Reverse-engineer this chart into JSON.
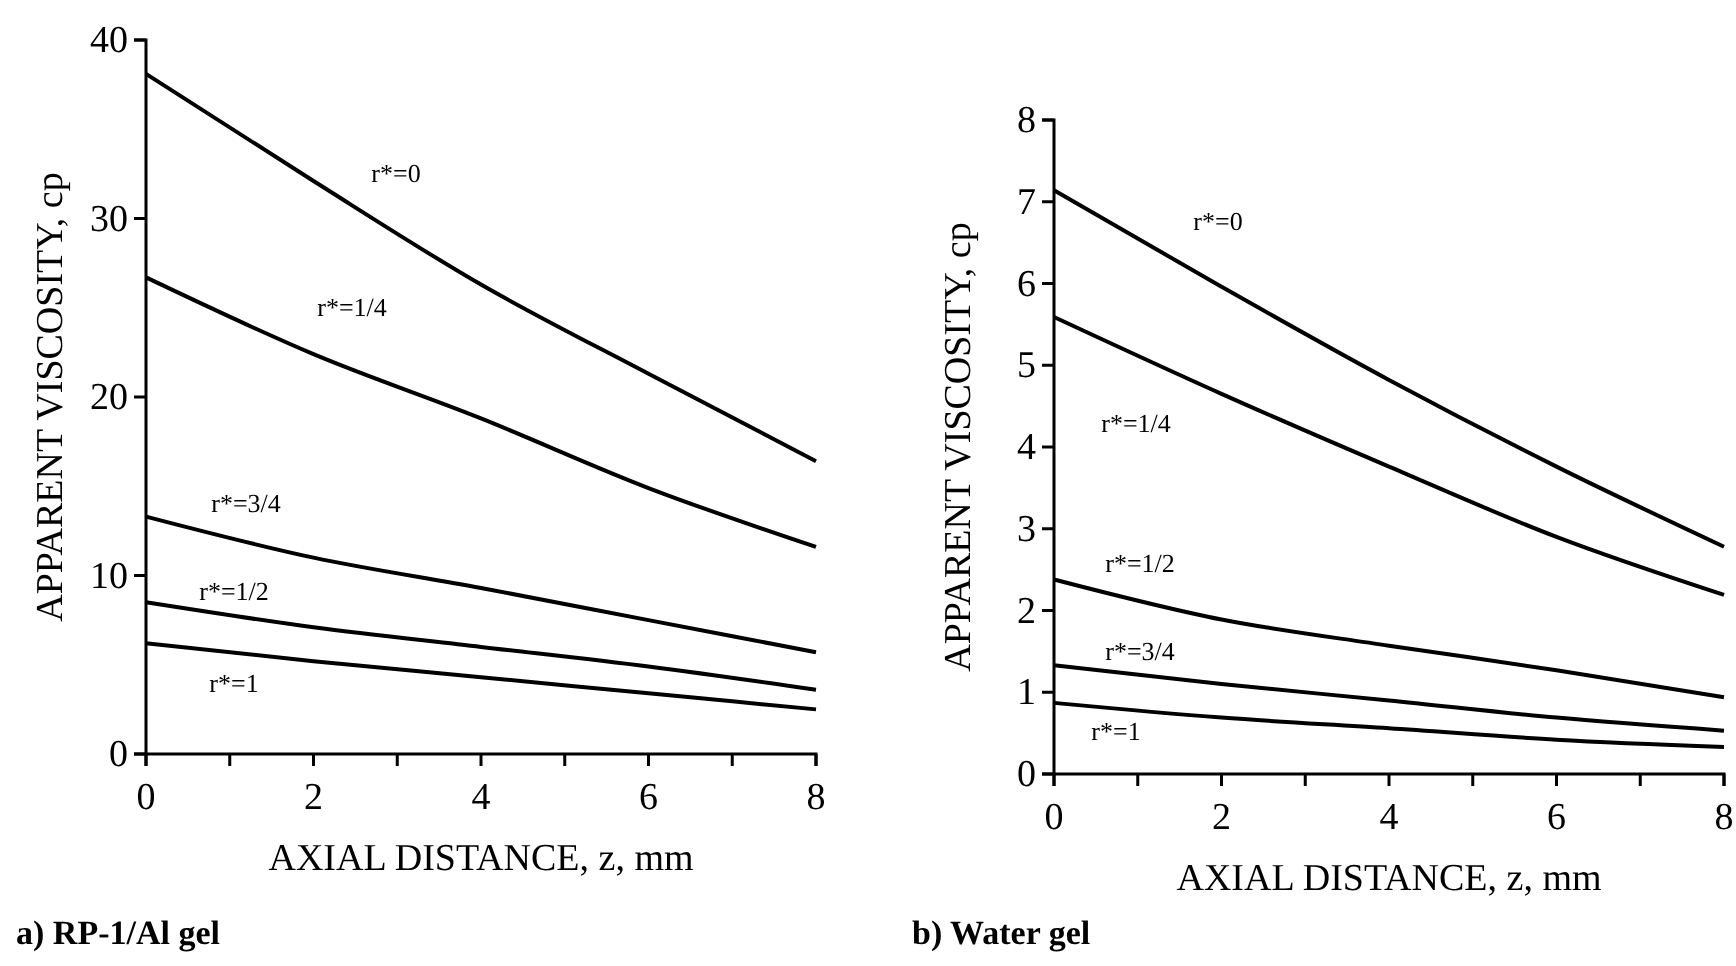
{
  "chart_data": [
    {
      "type": "line",
      "title": "a) RP-1/Al gel",
      "xlabel": "AXIAL DISTANCE, z, mm",
      "ylabel": "APPARENT VISCOSITY, cp",
      "x": [
        0,
        2,
        4,
        6,
        8
      ],
      "xlim": [
        0,
        8
      ],
      "ylim": [
        0,
        40
      ],
      "xticks": [
        0,
        {
          "value": 1,
          "label": null
        },
        2,
        {
          "value": 3,
          "label": null
        },
        4,
        {
          "value": 5,
          "label": null
        },
        6,
        {
          "value": 7,
          "label": null
        },
        8
      ],
      "yticks": [
        0,
        10,
        20,
        30,
        40
      ],
      "marker": "none",
      "line_style": "solid",
      "series": [
        {
          "name": "r*=0",
          "color": "#000000",
          "values": [
            38.1,
            32.1,
            26.3,
            21.3,
            16.4
          ]
        },
        {
          "name": "r*=1/4",
          "color": "#000000",
          "values": [
            26.7,
            22.4,
            18.8,
            14.9,
            11.6
          ]
        },
        {
          "name": "r*=3/4",
          "color": "#000000",
          "values": [
            13.3,
            11.0,
            9.3,
            7.5,
            5.7
          ]
        },
        {
          "name": "r*=1/2",
          "color": "#000000",
          "values": [
            8.5,
            7.1,
            6.0,
            4.9,
            3.6
          ]
        },
        {
          "name": "r*=1",
          "color": "#000000",
          "values": [
            6.2,
            5.2,
            4.3,
            3.4,
            2.5
          ]
        }
      ]
    },
    {
      "type": "line",
      "title": "b) Water gel",
      "xlabel": "AXIAL DISTANCE, z, mm",
      "ylabel": "APPARENT VISCOSITY, cp",
      "x": [
        0,
        2,
        4,
        6,
        8
      ],
      "xlim": [
        0,
        8
      ],
      "ylim": [
        0,
        8
      ],
      "xticks": [
        0,
        {
          "value": 1,
          "label": null
        },
        2,
        {
          "value": 3,
          "label": null
        },
        4,
        {
          "value": 5,
          "label": null
        },
        6,
        {
          "value": 7,
          "label": null
        },
        8
      ],
      "yticks": [
        0,
        1,
        2,
        3,
        4,
        5,
        6,
        7,
        8
      ],
      "marker": "none",
      "line_style": "solid",
      "series": [
        {
          "name": "r*=0",
          "color": "#000000",
          "values": [
            7.14,
            5.96,
            4.82,
            3.76,
            2.78
          ]
        },
        {
          "name": "r*=1/4",
          "color": "#000000",
          "values": [
            5.59,
            4.65,
            3.76,
            2.9,
            2.19
          ]
        },
        {
          "name": "r*=1/2",
          "color": "#000000",
          "values": [
            2.38,
            1.89,
            1.57,
            1.27,
            0.94
          ]
        },
        {
          "name": "r*=3/4",
          "color": "#000000",
          "values": [
            1.33,
            1.1,
            0.9,
            0.69,
            0.53
          ]
        },
        {
          "name": "r*=1",
          "color": "#000000",
          "values": [
            0.87,
            0.69,
            0.56,
            0.42,
            0.33
          ]
        }
      ]
    }
  ]
}
